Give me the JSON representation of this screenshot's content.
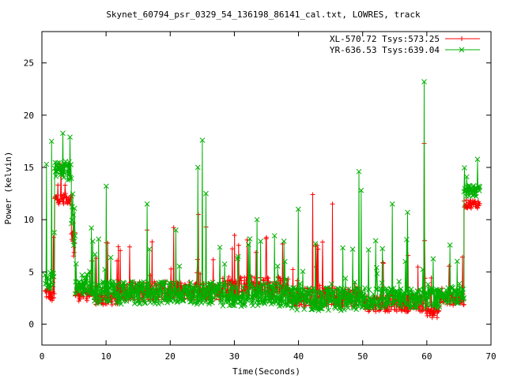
{
  "chart_data": {
    "type": "line",
    "title": "Skynet_60794_psr_0329_54_136198_86141_cal.txt, LOWRES, track",
    "xlabel": "Time(Seconds)",
    "ylabel": "Power (kelvin)",
    "xlim": [
      0,
      70
    ],
    "ylim": [
      -2,
      28
    ],
    "xticks": [
      0,
      10,
      20,
      30,
      40,
      50,
      60,
      70
    ],
    "yticks": [
      0,
      5,
      10,
      15,
      20,
      25
    ],
    "grid": false,
    "legend_position": "top-right",
    "series": [
      {
        "name": "XL-570.72 Tsys:573.25",
        "color": "#ff0000",
        "marker": "plus",
        "segments": [
          {
            "t0": 0.5,
            "t1": 1.3,
            "base": 3.0,
            "noise": 0.6
          },
          {
            "t0": 1.3,
            "t1": 2.0,
            "base": 2.6,
            "noise": 0.5
          },
          {
            "t0": 2.0,
            "t1": 4.6,
            "base": 12.0,
            "noise": 0.5
          },
          {
            "t0": 4.6,
            "t1": 5.2,
            "base": 8.0,
            "noise": 2.0
          },
          {
            "t0": 5.2,
            "t1": 8.0,
            "base": 3.0,
            "noise": 0.8
          },
          {
            "t0": 8.0,
            "t1": 12.0,
            "base": 2.4,
            "noise": 0.6
          },
          {
            "t0": 12.0,
            "t1": 28.0,
            "base": 3.2,
            "noise": 0.9
          },
          {
            "t0": 28.0,
            "t1": 38.5,
            "base": 3.6,
            "noise": 1.0
          },
          {
            "t0": 38.5,
            "t1": 50.0,
            "base": 2.6,
            "noise": 0.9
          },
          {
            "t0": 50.0,
            "t1": 60.0,
            "base": 2.0,
            "noise": 0.8
          },
          {
            "t0": 60.0,
            "t1": 62.0,
            "base": 1.2,
            "noise": 0.6
          },
          {
            "t0": 62.0,
            "t1": 65.8,
            "base": 2.4,
            "noise": 0.6
          },
          {
            "t0": 65.8,
            "t1": 68.3,
            "base": 11.5,
            "noise": 0.4
          }
        ],
        "spikes": [
          {
            "t": 1.8,
            "v": 8.3
          },
          {
            "t": 3.6,
            "v": 13.3
          },
          {
            "t": 10.0,
            "v": 7.8
          },
          {
            "t": 16.4,
            "v": 9.0
          },
          {
            "t": 24.4,
            "v": 10.5
          },
          {
            "t": 25.6,
            "v": 9.3
          },
          {
            "t": 30.0,
            "v": 8.5
          },
          {
            "t": 35.0,
            "v": 8.3
          },
          {
            "t": 42.2,
            "v": 12.4
          },
          {
            "t": 45.3,
            "v": 11.5
          },
          {
            "t": 59.6,
            "v": 17.3
          }
        ]
      },
      {
        "name": "YR-636.53 Tsys:639.04",
        "color": "#00b000",
        "marker": "cross",
        "segments": [
          {
            "t0": 0.5,
            "t1": 1.3,
            "base": 4.0,
            "noise": 0.8
          },
          {
            "t0": 1.3,
            "t1": 2.0,
            "base": 4.5,
            "noise": 1.0
          },
          {
            "t0": 2.0,
            "t1": 4.6,
            "base": 14.7,
            "noise": 0.9
          },
          {
            "t0": 4.6,
            "t1": 5.2,
            "base": 10.0,
            "noise": 2.5
          },
          {
            "t0": 5.2,
            "t1": 8.0,
            "base": 3.8,
            "noise": 1.0
          },
          {
            "t0": 8.0,
            "t1": 28.0,
            "base": 3.0,
            "noise": 1.1
          },
          {
            "t0": 28.0,
            "t1": 38.5,
            "base": 2.8,
            "noise": 1.1
          },
          {
            "t0": 38.5,
            "t1": 50.0,
            "base": 2.4,
            "noise": 1.1
          },
          {
            "t0": 50.0,
            "t1": 62.0,
            "base": 2.5,
            "noise": 1.0
          },
          {
            "t0": 62.0,
            "t1": 65.8,
            "base": 2.8,
            "noise": 0.8
          },
          {
            "t0": 65.8,
            "t1": 68.3,
            "base": 12.8,
            "noise": 0.6
          }
        ],
        "spikes": [
          {
            "t": 0.7,
            "v": 15.3
          },
          {
            "t": 1.5,
            "v": 17.5
          },
          {
            "t": 4.4,
            "v": 17.9
          },
          {
            "t": 10.0,
            "v": 13.2
          },
          {
            "t": 16.4,
            "v": 11.5
          },
          {
            "t": 24.3,
            "v": 15.0
          },
          {
            "t": 25.0,
            "v": 17.6
          },
          {
            "t": 25.6,
            "v": 12.5
          },
          {
            "t": 33.5,
            "v": 10.0
          },
          {
            "t": 40.0,
            "v": 11.0
          },
          {
            "t": 49.4,
            "v": 14.6
          },
          {
            "t": 49.8,
            "v": 12.8
          },
          {
            "t": 54.6,
            "v": 11.5
          },
          {
            "t": 57.0,
            "v": 10.7
          },
          {
            "t": 59.6,
            "v": 23.2
          },
          {
            "t": 66.2,
            "v": 14.1
          }
        ]
      }
    ]
  }
}
